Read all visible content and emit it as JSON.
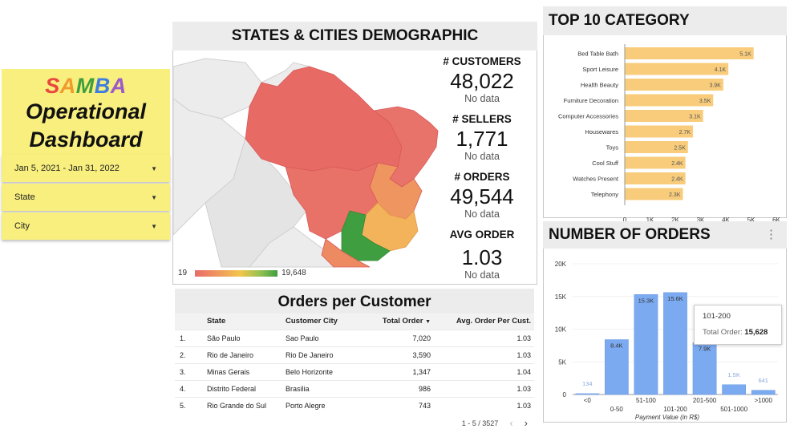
{
  "brand": {
    "letters": [
      {
        "ch": "S",
        "color": "#e9463e"
      },
      {
        "ch": "A",
        "color": "#f09a2e"
      },
      {
        "ch": "M",
        "color": "#3f9e3f"
      },
      {
        "ch": "B",
        "color": "#3e7de0"
      },
      {
        "ch": "A",
        "color": "#9b59c9"
      }
    ],
    "line1": "Operational",
    "line2": "Dashboard"
  },
  "filters": {
    "date": "Jan 5, 2021 - Jan 31, 2022",
    "state": "State",
    "city": "City"
  },
  "map_panel": {
    "title": "STATES & CITIES DEMOGRAPHIC",
    "legend_min": "19",
    "legend_max": "19,648",
    "colors": {
      "low": "#ea6b6b",
      "mid": "#f0a35a",
      "high": "#3f9e3f"
    }
  },
  "stats": [
    {
      "label": "# CUSTOMERS",
      "value": "48,022",
      "sub": "No data"
    },
    {
      "label": "# SELLERS",
      "value": "1,771",
      "sub": "No data"
    },
    {
      "label": "# ORDERS",
      "value": "49,544",
      "sub": "No data"
    },
    {
      "label": "AVG ORDER",
      "value": "1.03",
      "sub": "No data"
    }
  ],
  "table": {
    "title": "Orders per Customer",
    "columns": [
      "State",
      "Customer City",
      "Total Order",
      "Avg. Order Per Cust."
    ],
    "sort_indicator": "▼",
    "rows": [
      {
        "idx": "1.",
        "state": "São Paulo",
        "city": "Sao Paulo",
        "total": "7,020",
        "avg": "1.03"
      },
      {
        "idx": "2.",
        "state": "Rio de Janeiro",
        "city": "Rio De Janeiro",
        "total": "3,590",
        "avg": "1.03"
      },
      {
        "idx": "3.",
        "state": "Minas Gerais",
        "city": "Belo Horizonte",
        "total": "1,347",
        "avg": "1.04"
      },
      {
        "idx": "4.",
        "state": "Distrito Federal",
        "city": "Brasilia",
        "total": "986",
        "avg": "1.03"
      },
      {
        "idx": "5.",
        "state": "Rio Grande do Sul",
        "city": "Porto Alegre",
        "total": "743",
        "avg": "1.03"
      }
    ],
    "pagination": "1 - 5 / 3527"
  },
  "top10": {
    "title": "TOP 10 CATEGORY"
  },
  "orders": {
    "title": "NUMBER OF ORDERS",
    "tooltip": {
      "label": "101-200",
      "metric": "Total Order:",
      "value": "15,628"
    }
  },
  "chart_data": [
    {
      "type": "bar",
      "orientation": "horizontal",
      "title": "TOP 10 CATEGORY",
      "categories": [
        "Bed Table Bath",
        "Sport Leisure",
        "Health Beauty",
        "Furniture Decoration",
        "Computer Accessories",
        "Housewares",
        "Toys",
        "Cool Stuff",
        "Watches Present",
        "Telephony"
      ],
      "values": [
        5100,
        4100,
        3900,
        3500,
        3100,
        2700,
        2500,
        2400,
        2400,
        2300
      ],
      "labels": [
        "5.1K",
        "4.1K",
        "3.9K",
        "3.5K",
        "3.1K",
        "2.7K",
        "2.5K",
        "2.4K",
        "2.4K",
        "2.3K"
      ],
      "xlim": [
        0,
        6000
      ],
      "xticks": [
        "0",
        "1K",
        "2K",
        "3K",
        "4K",
        "5K",
        "6K"
      ],
      "color": "#f8cc7b"
    },
    {
      "type": "bar",
      "title": "NUMBER OF ORDERS",
      "categories": [
        "<0",
        "0-50",
        "51-100",
        "101-200",
        "201-500",
        "501-1000",
        ">1000"
      ],
      "values": [
        134,
        8400,
        15300,
        15600,
        7900,
        1500,
        641
      ],
      "labels": [
        "134",
        "8.4K",
        "15.3K",
        "15.6K",
        "7.9K",
        "1.5K",
        "641"
      ],
      "ylim": [
        0,
        20000
      ],
      "yticks": [
        "0",
        "5K",
        "10K",
        "15K",
        "20K"
      ],
      "xlabel": "Payment Value (in R$)",
      "color": "#7baaf0"
    }
  ]
}
